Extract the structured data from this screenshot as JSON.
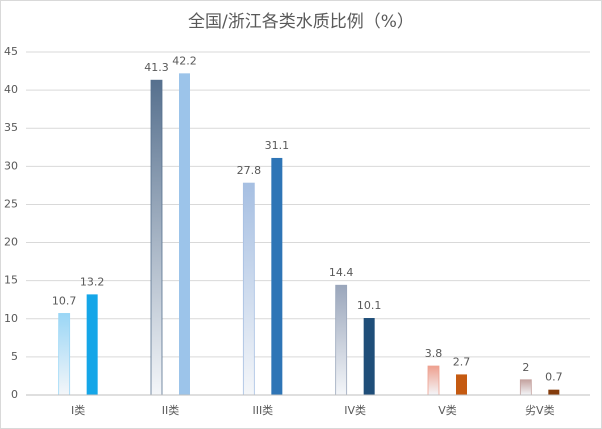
{
  "chart_data": {
    "type": "bar",
    "title": "全国/浙江各类水质比例（%）",
    "categories": [
      "I类",
      "II类",
      "III类",
      "IV类",
      "V类",
      "劣V类"
    ],
    "series": [
      {
        "values": [
          10.7,
          41.3,
          27.8,
          14.4,
          3.8,
          2
        ],
        "colors": [
          "#9ad6f6",
          "#56708e",
          "#a6bfe2",
          "#9aa6bb",
          "#eea08f",
          "#c4a29f"
        ],
        "gradient": true
      },
      {
        "values": [
          13.2,
          42.2,
          31.1,
          10.1,
          2.7,
          0.7
        ],
        "colors": [
          "#14a6e8",
          "#9cc4ea",
          "#2e75b6",
          "#1f4e79",
          "#c55a11",
          "#843c0c"
        ],
        "gradient": false
      }
    ],
    "ylim": [
      0,
      45
    ],
    "yticks": [
      0,
      5,
      10,
      15,
      20,
      25,
      30,
      35,
      40,
      45
    ],
    "grid": true
  }
}
